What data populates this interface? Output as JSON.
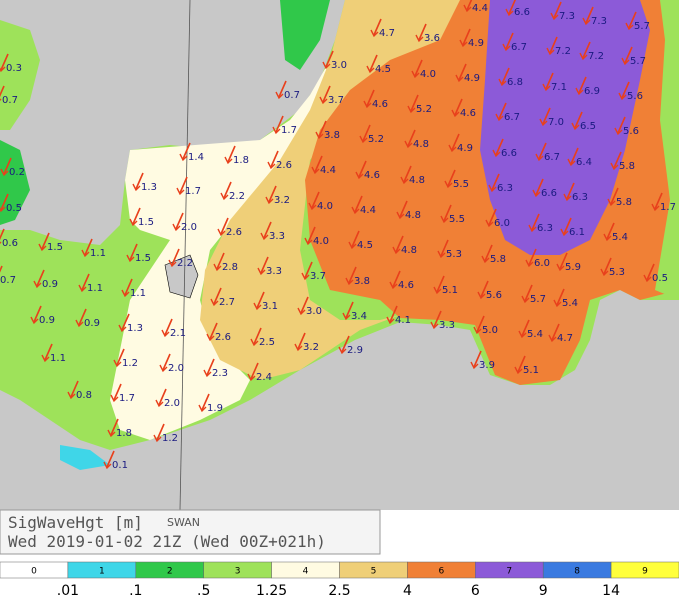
{
  "header": {
    "title": "SigWaveHgt [m]",
    "model": "SWAN",
    "subtitle": "Wed 2019-01-02 21Z (Wed 00Z+021h)"
  },
  "legend": {
    "classes": [
      {
        "label": "0",
        "color": "#ffffff"
      },
      {
        "label": "1",
        "color": "#3fd6e8"
      },
      {
        "label": "2",
        "color": "#30c84a"
      },
      {
        "label": "3",
        "color": "#9ee25a"
      },
      {
        "label": "4",
        "color": "#fffbe2"
      },
      {
        "label": "5",
        "color": "#efcf78"
      },
      {
        "label": "6",
        "color": "#f08036"
      },
      {
        "label": "7",
        "color": "#8c5ad8"
      },
      {
        "label": "8",
        "color": "#3a7ae0"
      },
      {
        "label": "9",
        "color": "#ffff3c"
      }
    ],
    "bounds": [
      ".01",
      ".1",
      ".5",
      "1.25",
      "2.5",
      "4",
      "6",
      "9",
      "14"
    ]
  },
  "map": {
    "labels": [
      "0.3",
      "0.7",
      "0.2",
      "0.5",
      "0.6",
      "1.5",
      "1.1",
      "1.5",
      "2.2",
      "0.7",
      "0.9",
      "1.1",
      "1.1",
      "0.9",
      "0.9",
      "1.3",
      "2.1",
      "1.1",
      "1.2",
      "2.0",
      "0.8",
      "1.7",
      "2.0",
      "1.9",
      "1.8",
      "1.2",
      "0.1",
      "1.4",
      "1.8",
      "1.3",
      "1.7",
      "2.2",
      "1.5",
      "2.0",
      "2.6",
      "2.6",
      "0.7",
      "1.7",
      "3.2",
      "3.3",
      "2.8",
      "3.3",
      "2.7",
      "3.1",
      "2.6",
      "2.5",
      "2.3",
      "2.4",
      "3.0",
      "3.7",
      "3.8",
      "4.4",
      "4.0",
      "4.0",
      "3.7",
      "3.0",
      "3.2",
      "3.8",
      "3.4",
      "2.9",
      "4.1",
      "3.3",
      "4.7",
      "4.5",
      "4.6",
      "5.2",
      "4.6",
      "4.4",
      "4.5",
      "4.6",
      "3.6",
      "4.0",
      "5.2",
      "4.8",
      "4.8",
      "4.8",
      "4.8",
      "5.1",
      "4.4",
      "4.9",
      "4.9",
      "4.6",
      "4.9",
      "5.5",
      "5.5",
      "5.3",
      "5.6",
      "5.0",
      "3.9",
      "6.6",
      "6.7",
      "6.8",
      "6.7",
      "6.6",
      "6.3",
      "6.0",
      "5.8",
      "5.7",
      "5.4",
      "5.1",
      "7.3",
      "7.2",
      "7.1",
      "7.0",
      "6.7",
      "6.6",
      "6.3",
      "6.0",
      "5.4",
      "4.7",
      "7.3",
      "7.2",
      "6.9",
      "6.5",
      "6.4",
      "6.3",
      "6.1",
      "5.9",
      "5.7",
      "5.7",
      "5.6",
      "5.6",
      "5.8",
      "5.8",
      "5.4",
      "5.3",
      "1.7",
      "0.5"
    ]
  }
}
